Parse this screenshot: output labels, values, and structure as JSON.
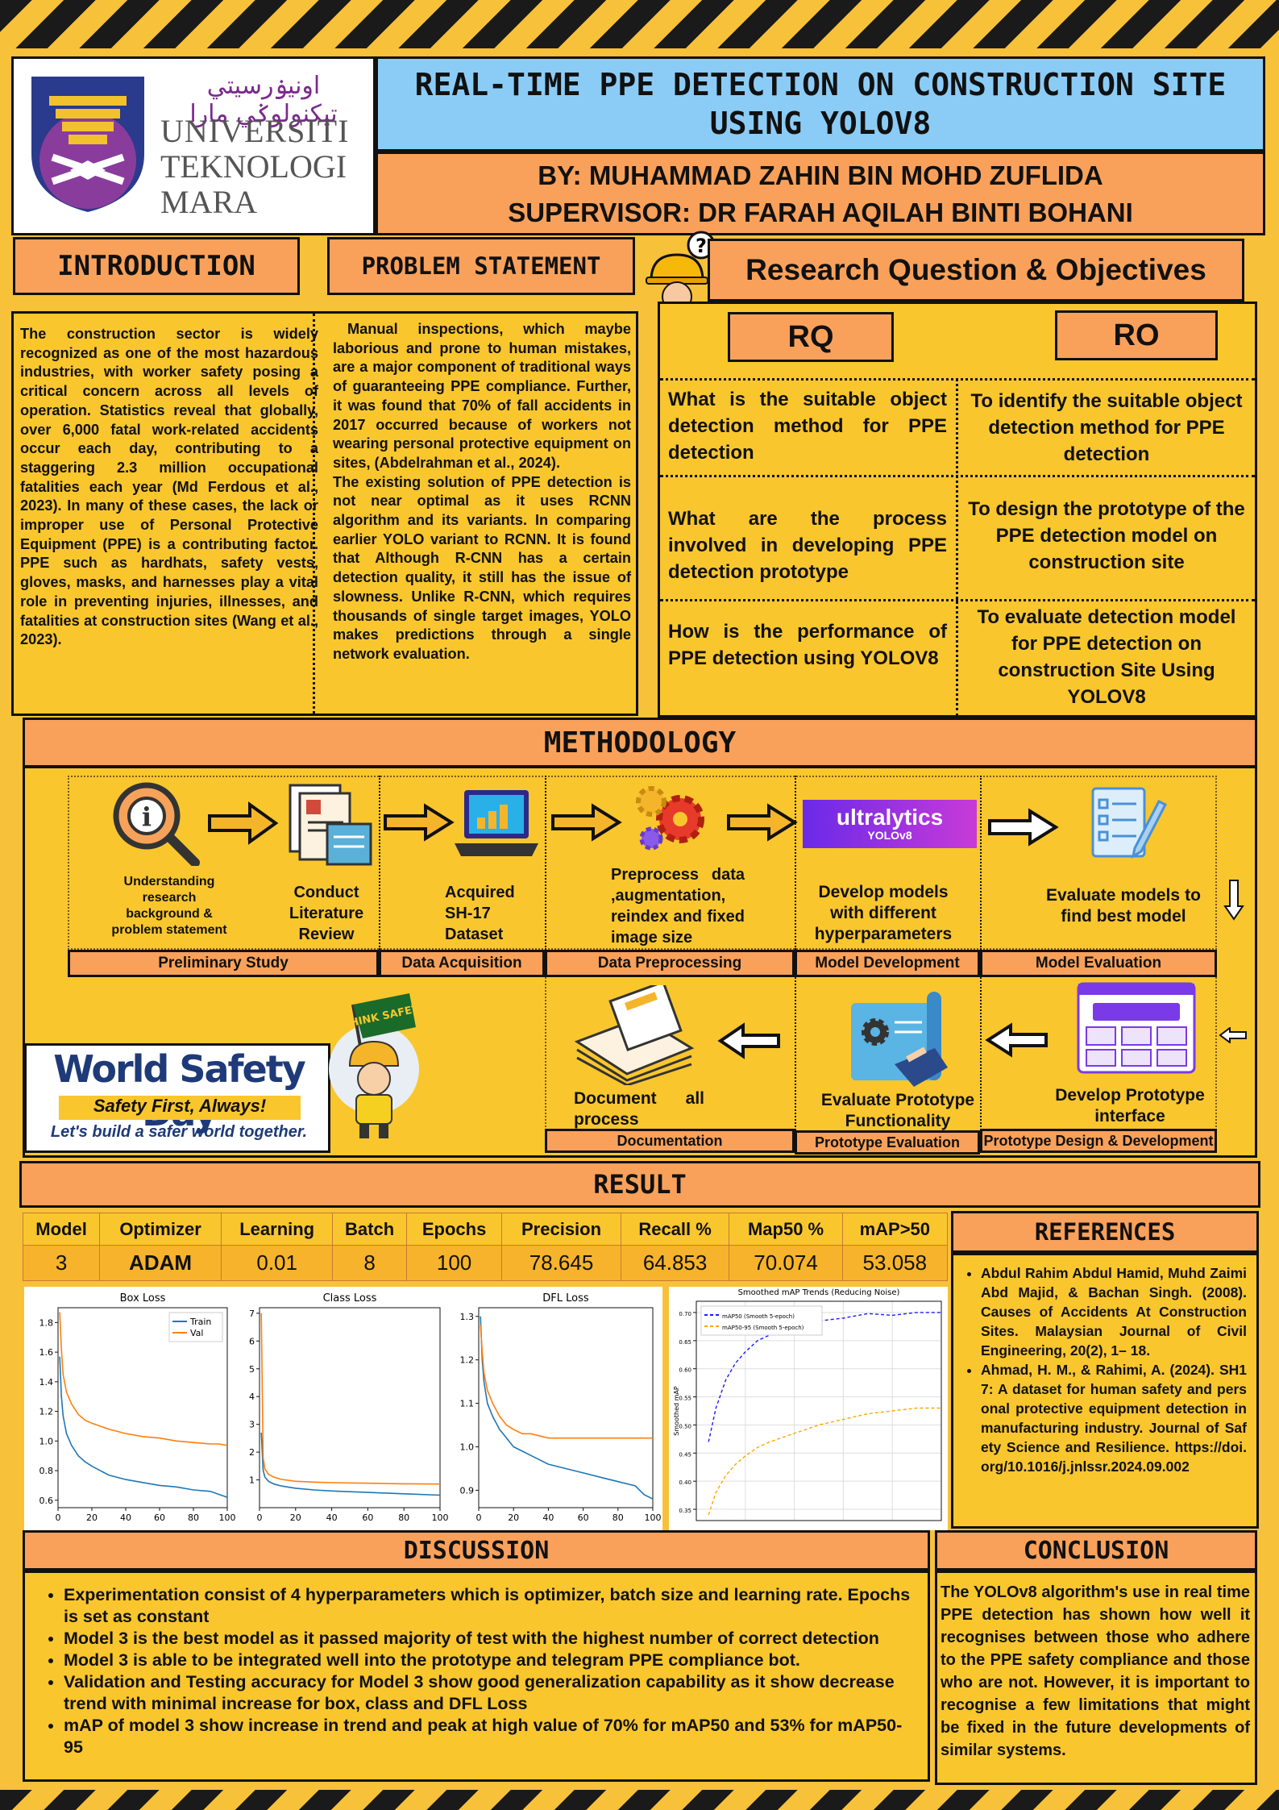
{
  "title": "REAL-TIME PPE DETECTION ON CONSTRUCTION SITE USING YOLOV8",
  "author": "BY: MUHAMMAD ZAHIN BIN MOHD ZUFLIDA",
  "supervisor": "SUPERVISOR: DR FARAH AQILAH BINTI BOHANI",
  "logo": {
    "jawi": "اونيۏرسيتي تيكنولوݢي مارا",
    "line1": "UNIVERSITI",
    "line2": "TEKNOLOGI",
    "line3": "MARA"
  },
  "introduction": {
    "heading": "INTRODUCTION",
    "text": "The construction sector is widely recognized as one of the most hazardous industries, with worker safety posing a critical concern across all levels of operation. Statistics reveal that globally, over 6,000 fatal work-related accidents occur each day, contributing to a staggering 2.3 million occupational fatalities each year (Md Ferdous et al., 2023). In many of these cases, the lack or improper use of Personal Protective Equipment (PPE) is a contributing factor. PPE such as hardhats, safety vests, gloves, masks, and harnesses play a vital role in preventing injuries, illnesses, and fatalities at construction sites (Wang et al., 2023)."
  },
  "problem": {
    "heading": "PROBLEM STATEMENT",
    "p1": "Manual inspections, which maybe laborious and prone to human mistakes, are a major component of traditional ways of guaranteeing PPE compliance. Further, it was found that 70% of fall accidents in 2017 occurred because of workers not wearing personal protective equipment on sites, (Abdelrahman et al., 2024).",
    "p2": "The existing solution of PPE detection is not near optimal as it uses RCNN algorithm and its variants. In comparing earlier YOLO variant to RCNN. It is found that Although R-CNN has a certain detection quality, it still has the issue of slowness. Unlike R-CNN, which requires thousands of single target images, YOLO makes predictions through a single network evaluation."
  },
  "research": {
    "heading": "Research Question & Objectives",
    "rq_label": "RQ",
    "ro_label": "RO",
    "rq": [
      "What is the suitable object detection method for PPE detection",
      "What are the process involved in developing PPE detection prototype",
      "How is the performance of PPE detection using YOLOV8"
    ],
    "ro": [
      "To identify the suitable object detection method for PPE detection",
      "To design the prototype of the PPE detection model on construction site",
      "To evaluate detection model for PPE detection on construction Site Using YOLOV8"
    ]
  },
  "methodology": {
    "heading": "METHODOLOGY",
    "steps": {
      "understanding": "Understanding research background & problem statement",
      "literature": "Conduct Literature Review",
      "acquired": "Acquired SH-17 Dataset",
      "preprocess": "Preprocess data ,augmentation, reindex and fixed image size",
      "develop": "Develop models with different hyperparameters",
      "evaluate": "Evaluate models to find best model",
      "proto_iface": "Develop Prototype interface",
      "proto_func": "Evaluate Prototype Functionality",
      "document": "Document all process"
    },
    "phases": {
      "prelim": "Preliminary Study",
      "acq": "Data Acquisition",
      "prep": "Data Preprocessing",
      "dev": "Model Development",
      "eval": "Model Evaluation",
      "doc": "Documentation",
      "proto_eval": "Prototype Evaluation",
      "proto_design": "Prototype Design & Development"
    },
    "ultralytics": "ultralytics",
    "yolov8": "YOLOv8",
    "flag": "THINK SAFETY",
    "wsd_title": "World Safety Day",
    "wsd_sub1": "Safety First, Always!",
    "wsd_sub2": "Let's build a safer world together."
  },
  "result": {
    "heading": "RESULT",
    "headers": [
      "Model",
      "Optimizer",
      "Learning",
      "Batch",
      "Epochs",
      "Precision",
      "Recall %",
      "Map50 %",
      "mAP>50"
    ],
    "row": [
      "3",
      "ADAM",
      "0.01",
      "8",
      "100",
      "78.645",
      "64.853",
      "70.074",
      "53.058"
    ]
  },
  "chart_data": [
    {
      "type": "line",
      "title": "Box Loss",
      "xlabel": "",
      "ylabel": "",
      "xlim": [
        0,
        100
      ],
      "ylim": [
        0.55,
        1.9
      ],
      "xticks": [
        "0",
        "20",
        "40",
        "60",
        "80",
        "100"
      ],
      "yticks": [
        "0.6",
        "0.8",
        "1.0",
        "1.2",
        "1.4",
        "1.6",
        "1.8"
      ],
      "legend": "top-right",
      "series": [
        {
          "name": "Train",
          "color": "#1f77b4",
          "x": [
            1,
            2,
            3,
            5,
            8,
            12,
            16,
            20,
            25,
            30,
            40,
            50,
            60,
            70,
            80,
            90,
            95,
            100
          ],
          "y": [
            1.57,
            1.3,
            1.17,
            1.05,
            0.97,
            0.9,
            0.86,
            0.83,
            0.8,
            0.77,
            0.74,
            0.72,
            0.7,
            0.69,
            0.67,
            0.66,
            0.64,
            0.62
          ]
        },
        {
          "name": "Val",
          "color": "#ff7f0e",
          "x": [
            1,
            2,
            3,
            5,
            8,
            12,
            16,
            20,
            25,
            30,
            40,
            50,
            60,
            70,
            80,
            90,
            95,
            100
          ],
          "y": [
            1.87,
            1.62,
            1.45,
            1.33,
            1.25,
            1.18,
            1.14,
            1.12,
            1.1,
            1.08,
            1.05,
            1.03,
            1.02,
            1.0,
            0.99,
            0.98,
            0.98,
            0.97
          ]
        }
      ]
    },
    {
      "type": "line",
      "title": "Class Loss",
      "xlabel": "",
      "ylabel": "",
      "xlim": [
        0,
        100
      ],
      "ylim": [
        0,
        7.2
      ],
      "xticks": [
        "0",
        "20",
        "40",
        "60",
        "80",
        "100"
      ],
      "yticks": [
        "1",
        "2",
        "3",
        "4",
        "5",
        "6",
        "7"
      ],
      "series": [
        {
          "name": "Train",
          "color": "#1f77b4",
          "x": [
            1,
            2,
            3,
            5,
            8,
            12,
            20,
            30,
            40,
            60,
            80,
            100
          ],
          "y": [
            2.7,
            1.35,
            1.1,
            0.95,
            0.85,
            0.78,
            0.7,
            0.64,
            0.6,
            0.55,
            0.5,
            0.45
          ]
        },
        {
          "name": "Val",
          "color": "#ff7f0e",
          "x": [
            1,
            2,
            3,
            5,
            8,
            12,
            20,
            30,
            40,
            60,
            80,
            100
          ],
          "y": [
            7.0,
            1.8,
            1.4,
            1.2,
            1.1,
            1.02,
            0.95,
            0.92,
            0.9,
            0.88,
            0.86,
            0.85
          ]
        }
      ]
    },
    {
      "type": "line",
      "title": "DFL Loss",
      "xlabel": "",
      "ylabel": "",
      "xlim": [
        0,
        100
      ],
      "ylim": [
        0.86,
        1.32
      ],
      "xticks": [
        "0",
        "20",
        "40",
        "60",
        "80",
        "100"
      ],
      "yticks": [
        "0.9",
        "1.0",
        "1.1",
        "1.2",
        "1.3"
      ],
      "series": [
        {
          "name": "Train",
          "color": "#1f77b4",
          "x": [
            1,
            2,
            3,
            5,
            8,
            12,
            16,
            20,
            25,
            30,
            40,
            50,
            60,
            70,
            80,
            90,
            95,
            100
          ],
          "y": [
            1.3,
            1.2,
            1.15,
            1.1,
            1.07,
            1.04,
            1.02,
            1.0,
            0.99,
            0.98,
            0.96,
            0.95,
            0.94,
            0.93,
            0.92,
            0.91,
            0.89,
            0.88
          ]
        },
        {
          "name": "Val",
          "color": "#ff7f0e",
          "x": [
            1,
            2,
            3,
            5,
            8,
            12,
            16,
            20,
            25,
            30,
            40,
            50,
            60,
            70,
            80,
            90,
            95,
            100
          ],
          "y": [
            1.28,
            1.22,
            1.17,
            1.13,
            1.1,
            1.07,
            1.05,
            1.04,
            1.03,
            1.03,
            1.02,
            1.02,
            1.02,
            1.02,
            1.02,
            1.02,
            1.02,
            1.02
          ]
        }
      ]
    },
    {
      "type": "line",
      "title": "Smoothed mAP Trends (Reducing Noise)",
      "xlabel": "",
      "ylabel": "Smoothed mAP",
      "xlim": [
        0,
        100
      ],
      "ylim": [
        0.33,
        0.72
      ],
      "yticks": [
        "0.35",
        "0.40",
        "0.45",
        "0.50",
        "0.55",
        "0.60",
        "0.65",
        "0.70"
      ],
      "legend": "top-left",
      "series": [
        {
          "name": "mAP50 (Smooth 5-epoch)",
          "color": "#1a1aff",
          "x": [
            5,
            8,
            12,
            16,
            20,
            25,
            30,
            40,
            50,
            60,
            70,
            80,
            90,
            100
          ],
          "y": [
            0.47,
            0.53,
            0.58,
            0.61,
            0.63,
            0.65,
            0.66,
            0.675,
            0.685,
            0.69,
            0.698,
            0.695,
            0.7,
            0.7
          ]
        },
        {
          "name": "mAP50-95 (Smooth 5-epoch)",
          "color": "#ffa500",
          "x": [
            5,
            8,
            12,
            16,
            20,
            25,
            30,
            40,
            50,
            60,
            70,
            80,
            90,
            100
          ],
          "y": [
            0.34,
            0.38,
            0.41,
            0.43,
            0.445,
            0.46,
            0.47,
            0.485,
            0.5,
            0.51,
            0.52,
            0.525,
            0.53,
            0.53
          ]
        }
      ]
    }
  ],
  "references": {
    "heading": "REFERENCES",
    "items": [
      "Abdul Rahim Abdul Hamid, Muhd Zaimi Abd Majid, & Bachan Singh. (2008). Causes of Accidents At Construction Sites. Malaysian Journal of Civil Engineering, 20(2), 1– 18.",
      "Ahmad, H. M., & Rahimi, A. (2024). SH17: A dataset for human safety and personal protective equipment detection in manufacturing industry. Journal of Safety Science and Resilience. https://doi.org/10.1016/j.jnlssr.2024.09.002"
    ]
  },
  "discussion": {
    "heading": "DISCUSSION",
    "items": [
      "Experimentation consist of 4 hyperparameters which is optimizer, batch size and learning rate. Epochs is set as constant",
      "Model 3 is the best model as it passed majority of test with the highest number of correct detection",
      "Model 3 is able to be integrated well into the prototype and telegram PPE compliance bot.",
      "Validation and Testing accuracy for Model 3 show good generalization capability as it show decrease trend with minimal increase for box, class and DFL  Loss",
      "mAP of model 3 show increase in trend and peak at high value of 70% for mAP50 and 53% for mAP50-95"
    ]
  },
  "conclusion": {
    "heading": "CONCLUSION",
    "text": "The YOLOv8 algorithm's use in real time PPE detection has shown how well it recognises between those who adhere to the PPE safety compliance and those who are not. However, it is important to recognise a few limitations that might be fixed in the future developments of similar systems."
  }
}
